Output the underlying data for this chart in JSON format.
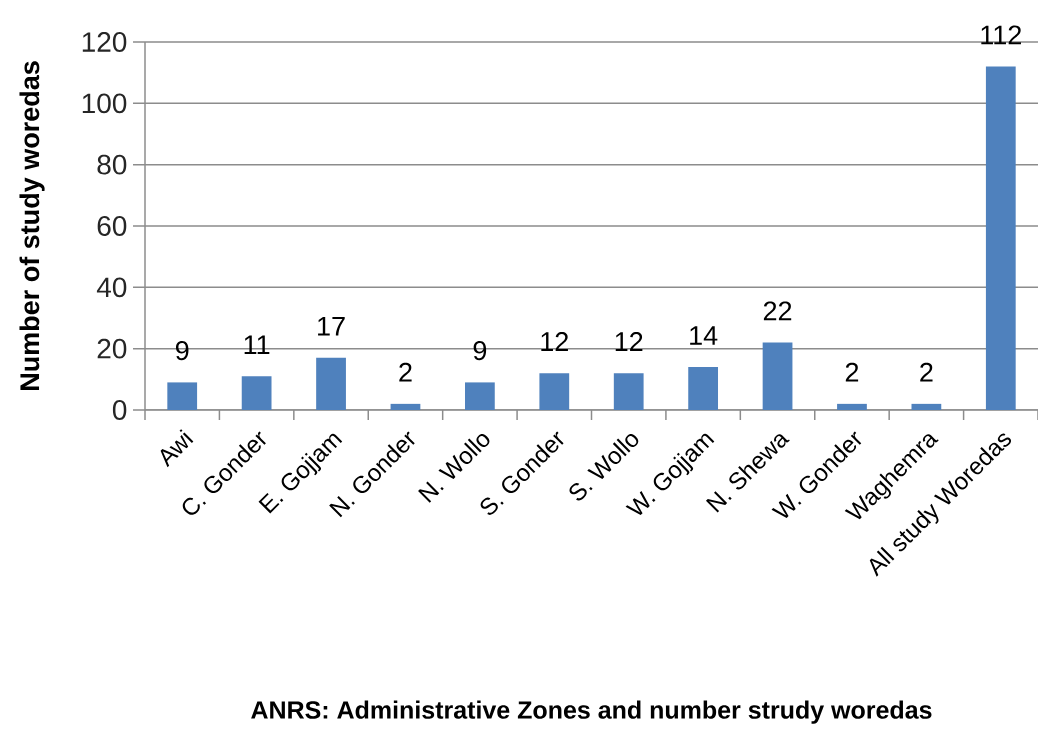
{
  "chart_data": {
    "type": "bar",
    "xlabel": "ANRS:  Administrative Zones  and number strudy woredas",
    "ylabel": "Number of study woredas",
    "categories": [
      "Awi",
      "C. Gonder",
      "E. Gojjam",
      "N. Gonder",
      "N. Wollo",
      "S. Gonder",
      "S. Wollo",
      "W. Gojjam",
      "N. Shewa",
      "W. Gonder",
      "Waghemra",
      "All study  Woredas"
    ],
    "values": [
      9,
      11,
      17,
      2,
      9,
      12,
      12,
      14,
      22,
      2,
      2,
      112
    ],
    "color": "#4f81bd",
    "ylim": [
      0,
      120
    ],
    "yticks": [
      0,
      20,
      40,
      60,
      80,
      100,
      120
    ],
    "grid": "y",
    "data_labels": true
  }
}
